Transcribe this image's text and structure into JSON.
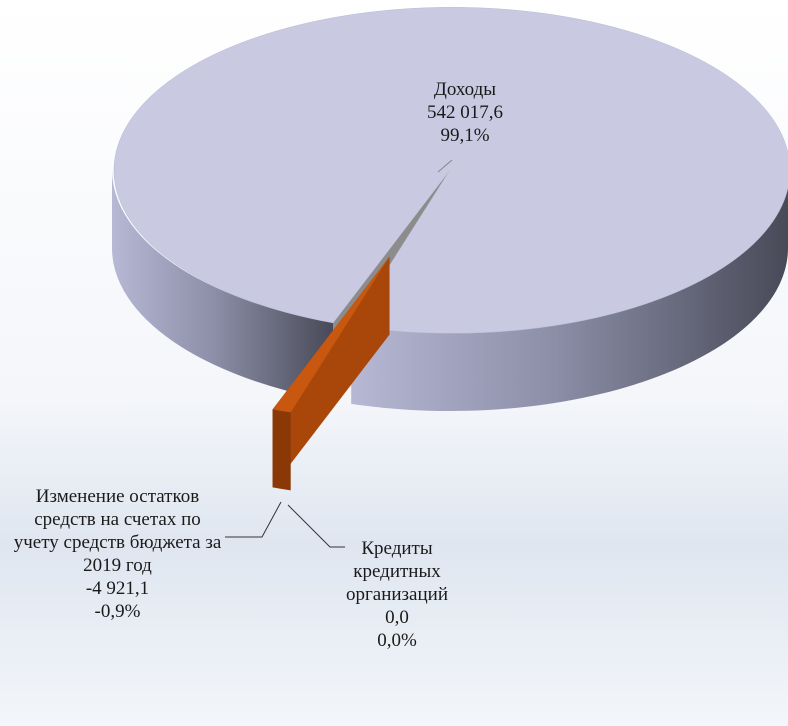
{
  "chart_data": {
    "type": "pie3d",
    "categories": [
      "Доходы",
      "Изменение остатков средств на счетах по учету средств бюджета за 2019 год",
      "Кредиты кредитных организаций"
    ],
    "values": [
      542017.6,
      -4921.1,
      0.0
    ],
    "value_labels": [
      "542 017,6",
      "-4 921,1",
      "0,0"
    ],
    "percent": [
      99.1,
      -0.9,
      0.0
    ],
    "percent_labels": [
      "99,1%",
      "-0,9%",
      "0,0%"
    ],
    "colors": [
      "#c9cae2",
      "#c8570f",
      "#8e8e8e"
    ]
  }
}
